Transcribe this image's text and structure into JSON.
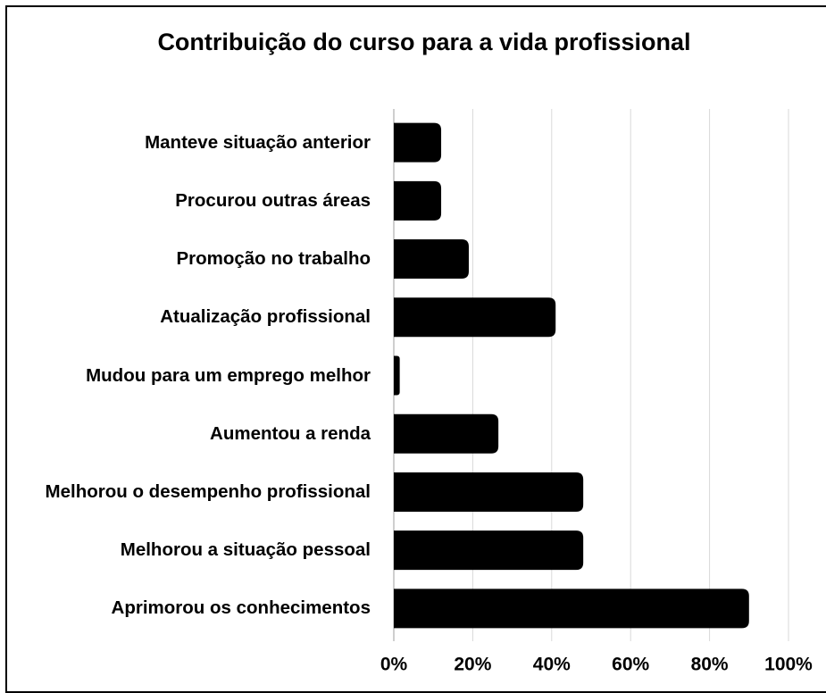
{
  "chart_data": {
    "type": "bar",
    "orientation": "horizontal",
    "title": "Contribuição do curso para a vida profissional",
    "categories": [
      "Manteve situação anterior",
      "Procurou outras áreas",
      "Promoção no trabalho",
      "Atualização profissional",
      "Mudou para um emprego melhor",
      "Aumentou a renda",
      "Melhorou o desempenho profissional",
      "Melhorou a situação pessoal",
      "Aprimorou os conhecimentos"
    ],
    "values": [
      12,
      12,
      19,
      41,
      1.5,
      26.5,
      48,
      48,
      90
    ],
    "color": "#000000",
    "xlim": [
      0,
      100
    ],
    "xticks": [
      {
        "value": 0,
        "label": "0%"
      },
      {
        "value": 20,
        "label": "20%"
      },
      {
        "value": 40,
        "label": "40%"
      },
      {
        "value": 60,
        "label": "60%"
      },
      {
        "value": 80,
        "label": "80%"
      },
      {
        "value": 100,
        "label": "100%"
      }
    ],
    "grid": true
  }
}
